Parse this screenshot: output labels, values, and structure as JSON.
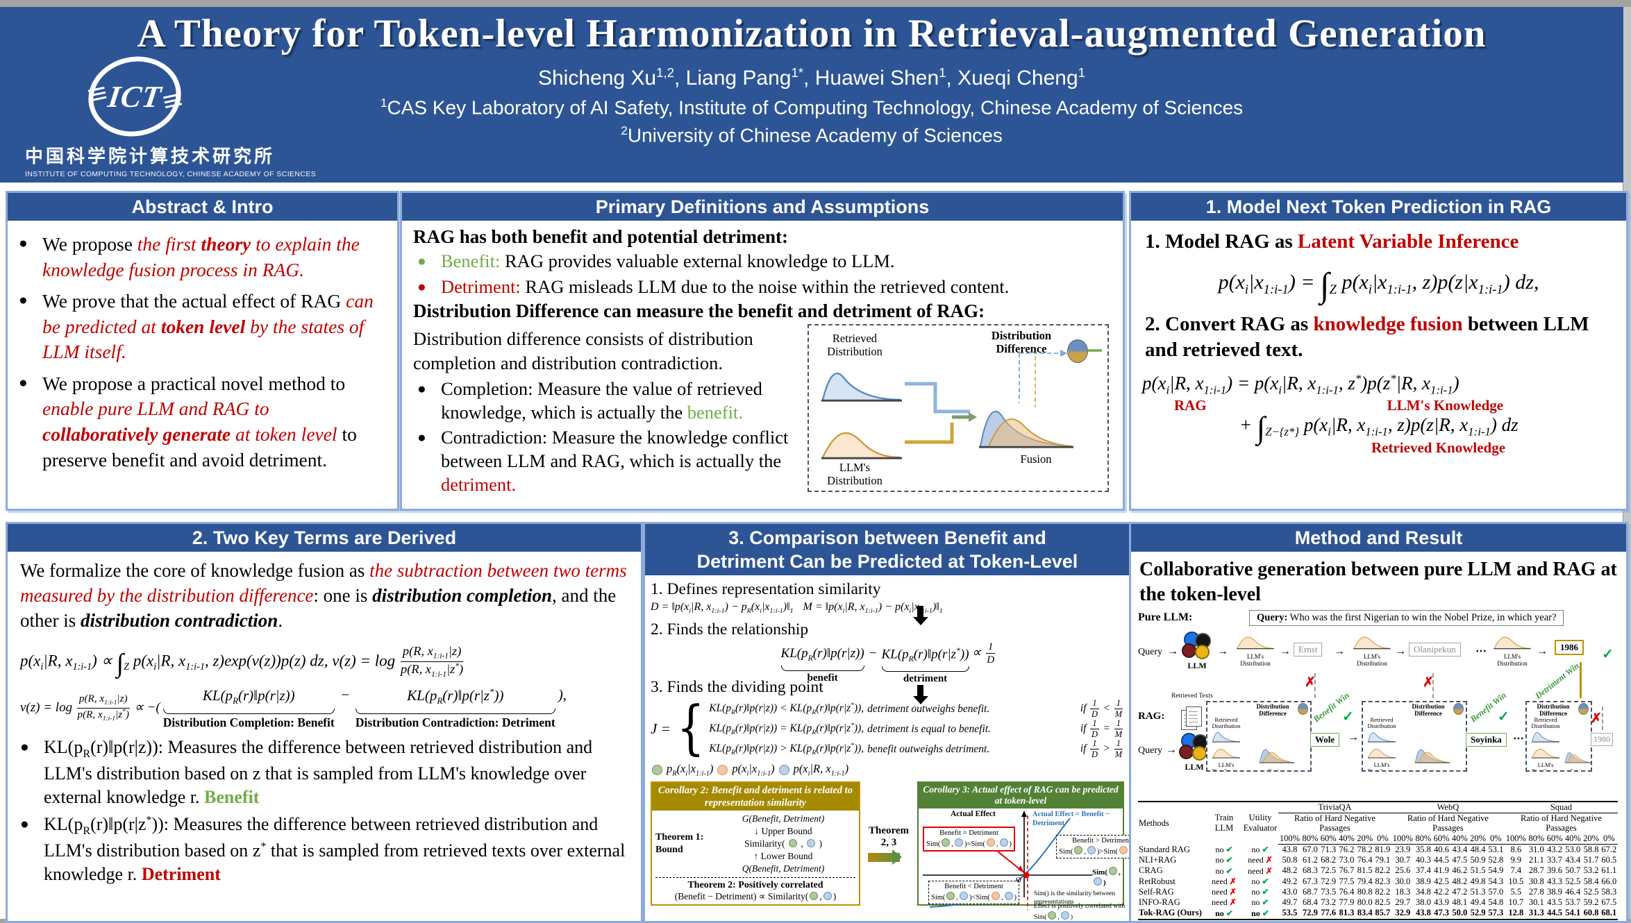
{
  "colors": {
    "header_blue": "#2d5596",
    "panel_border": "#8eaadb",
    "red": "#c00000",
    "green": "#70ad47",
    "check_green": "#00a650",
    "cross_red": "#e00000",
    "corollary2_gold": "#a58a00",
    "corollary3_green": "#538135",
    "token_gold": "#bf8f00",
    "dashed_navy": "#44546a"
  },
  "marks": {
    "bullet": "●",
    "check": "✓",
    "cross": "✗",
    "dots": "⋯",
    "arrow": "→",
    "down": "↓",
    "up": "↑"
  },
  "header": {
    "title": "A Theory for Token-level Harmonization in Retrieval-augmented Generation",
    "authors": "Shicheng Xu^[1,2], Liang Pang^[1*], Huawei Shen^[1], Xueqi Cheng^[1]",
    "affiliation1": "^[1]CAS Key Laboratory of AI Safety, Institute of Computing Technology, Chinese Academy of Sciences",
    "affiliation2": "^[2]University of Chinese Academy of Sciences",
    "logo": {
      "acronym": "ICT",
      "chinese": "中国科学院计算技术研究所",
      "english": "INSTITUTE OF COMPUTING TECHNOLOGY, CHINESE ACADEMY OF SCIENCES"
    }
  },
  "figure": {
    "diff": "Distribution Difference",
    "retrieved": "Retrieved Distribution",
    "llm": "LLM's Distribution",
    "fusion": "Fusion"
  },
  "panels": {
    "abstract": {
      "title": "Abstract & Intro",
      "bullets": [
        [
          [
            "n",
            "We propose "
          ],
          [
            "ri",
            "the first "
          ],
          [
            "rbi",
            "theory"
          ],
          [
            "ri",
            " to explain the knowledge fusion process in RAG."
          ]
        ],
        [
          [
            "n",
            "We prove that the actual effect of RAG "
          ],
          [
            "ri",
            "can be predicted at "
          ],
          [
            "rbi",
            "token level"
          ],
          [
            "ri",
            " by the states of LLM itself."
          ]
        ],
        [
          [
            "n",
            "We propose a practical novel method to "
          ],
          [
            "ri",
            "enable pure LLM and RAG to "
          ],
          [
            "rbi",
            "collaboratively generate"
          ],
          [
            "ri",
            " at token level "
          ],
          [
            "n",
            "to preserve benefit and avoid detriment."
          ]
        ]
      ]
    },
    "definitions": {
      "title": "Primary Definitions and Assumptions",
      "line1": "RAG has both benefit and potential detriment:",
      "bullet_benefit": [
        [
          "g",
          "Benefit:"
        ],
        [
          "n",
          " RAG provides valuable external knowledge to LLM."
        ]
      ],
      "bullet_detriment": [
        [
          "r",
          "Detriment:"
        ],
        [
          "n",
          " RAG misleads LLM due to the noise within the retrieved content."
        ]
      ],
      "line2": "Distribution Difference can measure the benefit and detriment of RAG:",
      "para": "Distribution difference consists of distribution completion and distribution contradiction.",
      "bullet_completion": [
        [
          "n",
          "Completion: Measure the value of retrieved knowledge, which is actually the "
        ],
        [
          "g",
          "benefit."
        ]
      ],
      "bullet_contradiction": [
        [
          "n",
          "Contradiction: Measure the knowledge conflict between LLM and RAG, which is actually the "
        ],
        [
          "r",
          "detriment."
        ]
      ]
    },
    "model": {
      "title": "1. Model Next Token Prediction in RAG",
      "h1": [
        [
          "b",
          "1. Model RAG as "
        ],
        [
          "rb",
          "Latent Variable Inference"
        ]
      ],
      "eq1": "p(x_[i]|x_[1:i-1]) = ∫_[Z] p(x_[i]|x_[1:i-1], z)p(z|x_[1:i-1]) dz,",
      "h2": [
        [
          "b",
          "2. Convert RAG as "
        ],
        [
          "rb",
          "knowledge fusion"
        ],
        [
          "b",
          " between LLM and retrieved text."
        ]
      ],
      "eq2a": "p(x_[i]|R, x_[1:i-1]) = p(x_[i]|R, x_[1:i-1], z^[*])p(z^[*]|R, x_[1:i-1])",
      "lbl_rag": "RAG",
      "lbl_llm": "LLM's Knowledge",
      "eq2b": "+ ∫_[Z−{z*}] p(x_[i]|R, x_[1:i-1], z)p(z|R, x_[1:i-1]) dz",
      "lbl_ret": "Retrieved Knowledge"
    },
    "terms": {
      "title": "2. Two Key Terms are Derived",
      "para": [
        [
          "n",
          "We formalize the core of knowledge fusion as "
        ],
        [
          "ri",
          "the subtraction between two terms measured by the distribution difference"
        ],
        [
          "n",
          ": one is "
        ],
        [
          "bi",
          "distribution completion"
        ],
        [
          "n",
          ", and the other is "
        ],
        [
          "bi",
          "distribution contradiction"
        ],
        [
          "n",
          "."
        ]
      ],
      "eq1": "p(x_[i]|R, x_[1:i-1]) ∝ ∫_[Z] p(x_[i]|R, x_[1:i-1], z)exp(v(z))p(z) dz,    v(z) = log \\frac[p(R, x_[1:i-1]|z)][p(R, x_[1:i-1]|z^[*])]",
      "eq2_head": "v(z) = log \\frac[p(R, x_[1:i-1]|z)][p(R, x_[1:i-1]|z^[*])] ∝ −(",
      "ub1_term": "KL(p_[R](r)‖p(r|z))",
      "ub1_label": "Distribution Completion: Benefit",
      "minus": "−",
      "ub2_term": "KL(p_[R](r)‖p(r|z^[*]))",
      "ub2_label": "Distribution Contradiction: Detriment",
      "eq2_tail": "),",
      "bullets": [
        [
          [
            "n",
            "KL(p_[R](r)‖p(r|z)): Measures the difference between retrieved distribution and LLM's distribution based on z that is sampled from LLM's knowledge over external knowledge r.   "
          ],
          [
            "gb",
            "Benefit"
          ]
        ],
        [
          [
            "n",
            "KL(p_[R](r)‖p(r|z^[*])): Measures the difference between retrieved distribution and LLM's distribution based on z^[*] that is sampled from retrieved texts over external knowledge r. "
          ],
          [
            "rb",
            "Detriment"
          ]
        ]
      ]
    },
    "comparison": {
      "title1": "3. Comparison between Benefit and",
      "title2": "Detriment Can be Predicted at Token-Level",
      "step1": "1. Defines representation similarity",
      "eq_d": "D = ‖p(x_[i]|R, x_[1:i-1]) − p_[R](x_[i]|x_[1:i-1])‖_[1]",
      "eq_m": "M = ‖p(x_[i]|R, x_[1:i-1]) − p(x_[i]|x_[1:i-1])‖_[1]",
      "step2": "2. Finds the relationship",
      "rel_ub1": "KL(p_[R](r)‖p(r|z))",
      "rel_lbl1": "benefit",
      "rel_minus": "−",
      "rel_ub2": "KL(p_[R](r)‖p(r|z^[*]))",
      "rel_lbl2": "detriment",
      "rel_tail": "∝ \\frac[1][D]",
      "step3": "3. Finds the dividing point",
      "j_lhs": "J =",
      "cases": [
        {
          "kl": "KL(p_[R](r)‖p(r|z)) < KL(p_[R](r)‖p(r|z^[*])),",
          "txt": "detriment outweighs benefit.",
          "cond": "if \\frac[1][D] < \\frac[1][M]"
        },
        {
          "kl": "KL(p_[R](r)‖p(r|z)) = KL(p_[R](r)‖p(r|z^[*])),",
          "txt": "detriment is equal to benefit.",
          "cond": "if \\frac[1][D] = \\frac[1][M]"
        },
        {
          "kl": "KL(p_[R](r)‖p(r|z)) > KL(p_[R](r)‖p(r|z^[*])),",
          "txt": "benefit outweighs detriment.",
          "cond": "if \\frac[1][D] > \\frac[1][M]"
        }
      ],
      "legend": [
        [
          "cg",
          ""
        ],
        [
          "i",
          " p_[R](x_[i]|x_[1:i-1])   "
        ],
        [
          "co",
          ""
        ],
        [
          "i",
          " p(x_[i]|x_[1:i-1])   "
        ],
        [
          "cb",
          ""
        ],
        [
          "i",
          " p(x_[i]|R, x_[1:i-1])"
        ]
      ],
      "cor2": {
        "title": "Corollary 2: Benefit and detriment is related to representation similarity",
        "thm1a": "Theorem 1:",
        "thm1b": "Bound",
        "g_line": "G(Benefit, Detriment)",
        "upper": "Upper Bound",
        "sim": [
          [
            "n",
            "Similarity( "
          ],
          [
            "cg",
            ""
          ],
          [
            "n",
            " , "
          ],
          [
            "cb",
            ""
          ],
          [
            "n",
            " )"
          ]
        ],
        "lower": "Lower Bound",
        "q_line": "Q(Benefit, Detriment)",
        "thm2": "Theorem 2: Positively correlated",
        "thm2_eq": [
          [
            "n",
            "(Benefit − Detriment) ∝ Similarity("
          ],
          [
            "cg",
            ""
          ],
          [
            "n",
            ","
          ],
          [
            "cb",
            ""
          ],
          [
            "n",
            ")"
          ]
        ]
      },
      "arrow_label": "Theorem 2, 3",
      "cor3": {
        "title": "Corollary 3: Actual effect of RAG can be predicted at token-level",
        "y_label": "Actual Effect",
        "curve_label": "Actual Effect = Benefit − Detriment",
        "box_eq_1": "Benefit = Detriment",
        "box_eq_2": [
          [
            "n",
            "Sim("
          ],
          [
            "cg",
            ""
          ],
          [
            "n",
            ","
          ],
          [
            "cb",
            ""
          ],
          [
            "n",
            ")=Sim("
          ],
          [
            "co",
            ""
          ],
          [
            "n",
            ","
          ],
          [
            "cb",
            ""
          ],
          [
            "n",
            ")"
          ]
        ],
        "box_gt_1": "Benefit > Detriment",
        "box_gt_2": [
          [
            "n",
            "Sim("
          ],
          [
            "cg",
            ""
          ],
          [
            "n",
            ","
          ],
          [
            "cb",
            ""
          ],
          [
            "n",
            ")>Sim("
          ],
          [
            "co",
            ""
          ],
          [
            "n",
            ","
          ],
          [
            "cb",
            ""
          ],
          [
            "n",
            ")"
          ]
        ],
        "box_lt_1": "Benefit < Detriment",
        "box_lt_2": [
          [
            "n",
            "Sim("
          ],
          [
            "cg",
            ""
          ],
          [
            "n",
            ","
          ],
          [
            "cb",
            ""
          ],
          [
            "n",
            ")<Sim("
          ],
          [
            "co",
            ""
          ],
          [
            "n",
            ","
          ],
          [
            "cb",
            ""
          ],
          [
            "n",
            ")"
          ]
        ],
        "origin": "O",
        "x_label": [
          [
            "b",
            "Sim("
          ],
          [
            "cg",
            ""
          ],
          [
            "b",
            ","
          ],
          [
            "cb",
            ""
          ],
          [
            "b",
            ")"
          ]
        ],
        "note1": "Sim() is the similarity between representations",
        "note2": [
          [
            "n",
            "Effect is positively correlated with Sim("
          ],
          [
            "cg",
            ""
          ],
          [
            "n",
            ","
          ],
          [
            "cb",
            ""
          ],
          [
            "n",
            ")"
          ]
        ]
      }
    },
    "method": {
      "title": "Method and Result",
      "heading": "Collaborative generation between pure LLM and RAG at the token-level",
      "query": [
        [
          "b",
          "Query:"
        ],
        [
          "n",
          " Who was the first Nigerian to  win the Nobel Prize, in which year?"
        ]
      ],
      "pure_label": "Pure LLM:",
      "rag_label": "RAG:",
      "query_word": "Query",
      "llm_label": "LLM",
      "retrieved_texts": "Retrieved Texts",
      "tokens_pure": [
        "Ernst",
        "Olanipekun",
        "1986"
      ],
      "tokens_rag": [
        "Wole",
        "Soyinka",
        "1980"
      ],
      "benefit_win": "Benefit Win",
      "detriment_win": "Detriment Win"
    }
  },
  "results_table": {
    "col_methods": "Methods",
    "col_train": "Train LLM",
    "col_utility": "Utility Evaluator",
    "datasets": [
      "TriviaQA",
      "WebQ",
      "Squad"
    ],
    "subheader": "Ratio of Hard Negative Passages",
    "ratios": [
      "100%",
      "80%",
      "60%",
      "40%",
      "20%",
      "0%"
    ],
    "check": "✔",
    "cross": "✗",
    "rows": [
      {
        "method": "Standard RAG",
        "train": {
          "label": "no",
          "ok": true
        },
        "utility": {
          "label": "no",
          "ok": true
        },
        "bold": false,
        "values": [
          [
            "43.8",
            "67.0",
            "71.3",
            "76.2",
            "78.2",
            "81.9"
          ],
          [
            "23.9",
            "35.8",
            "40.6",
            "43.4",
            "48.4",
            "53.1"
          ],
          [
            "8.6",
            "31.0",
            "43.2",
            "53.0",
            "58.8",
            "67.2"
          ]
        ]
      },
      {
        "method": "NLI+RAG",
        "train": {
          "label": "no",
          "ok": true
        },
        "utility": {
          "label": "need",
          "ok": false
        },
        "bold": false,
        "values": [
          [
            "50.8",
            "61.2",
            "68.2",
            "73.0",
            "76.4",
            "79.1"
          ],
          [
            "30.7",
            "40.3",
            "44.5",
            "47.5",
            "50.9",
            "52.8"
          ],
          [
            "9.9",
            "21.1",
            "33.7",
            "43.4",
            "51.7",
            "60.5"
          ]
        ]
      },
      {
        "method": "CRAG",
        "train": {
          "label": "no",
          "ok": true
        },
        "utility": {
          "label": "need",
          "ok": false
        },
        "bold": false,
        "values": [
          [
            "48.2",
            "68.3",
            "72.5",
            "76.7",
            "81.5",
            "82.2"
          ],
          [
            "25.6",
            "37.4",
            "41.9",
            "46.2",
            "51.5",
            "54.9"
          ],
          [
            "7.4",
            "28.7",
            "39.6",
            "50.7",
            "53.2",
            "61.1"
          ]
        ]
      },
      {
        "method": "RetRobust",
        "train": {
          "label": "need",
          "ok": false
        },
        "utility": {
          "label": "no",
          "ok": true
        },
        "bold": false,
        "values": [
          [
            "49.2",
            "67.3",
            "72.9",
            "77.5",
            "79.4",
            "82.3"
          ],
          [
            "30.0",
            "38.9",
            "42.5",
            "48.2",
            "49.8",
            "54.3"
          ],
          [
            "10.5",
            "30.8",
            "43.3",
            "52.5",
            "58.4",
            "66.0"
          ]
        ]
      },
      {
        "method": "Self-RAG",
        "train": {
          "label": "need",
          "ok": false
        },
        "utility": {
          "label": "no",
          "ok": true
        },
        "bold": false,
        "values": [
          [
            "43.0",
            "68.7",
            "73.5",
            "76.4",
            "80.8",
            "82.2"
          ],
          [
            "18.3",
            "34.8",
            "42.2",
            "47.2",
            "51.3",
            "57.0"
          ],
          [
            "5.5",
            "27.8",
            "38.9",
            "46.4",
            "52.5",
            "58.3"
          ]
        ]
      },
      {
        "method": "INFO-RAG",
        "train": {
          "label": "need",
          "ok": false
        },
        "utility": {
          "label": "no",
          "ok": true
        },
        "bold": false,
        "values": [
          [
            "49.7",
            "68.4",
            "73.2",
            "77.9",
            "80.0",
            "82.5"
          ],
          [
            "29.7",
            "38.0",
            "43.9",
            "48.1",
            "49.4",
            "54.8"
          ],
          [
            "10.7",
            "30.1",
            "43.5",
            "53.7",
            "59.2",
            "67.5"
          ]
        ]
      },
      {
        "method": "Tok-RAG (Ours)",
        "train": {
          "label": "no",
          "ok": true
        },
        "utility": {
          "label": "no",
          "ok": true
        },
        "bold": true,
        "values": [
          [
            "53.5",
            "72.9",
            "77.6",
            "81.3",
            "83.4",
            "85.7"
          ],
          [
            "32.9",
            "43.8",
            "47.3",
            "50.0",
            "52.9",
            "57.3"
          ],
          [
            "12.8",
            "31.3",
            "44.5",
            "54.1",
            "60.8",
            "68.1"
          ]
        ]
      }
    ]
  }
}
